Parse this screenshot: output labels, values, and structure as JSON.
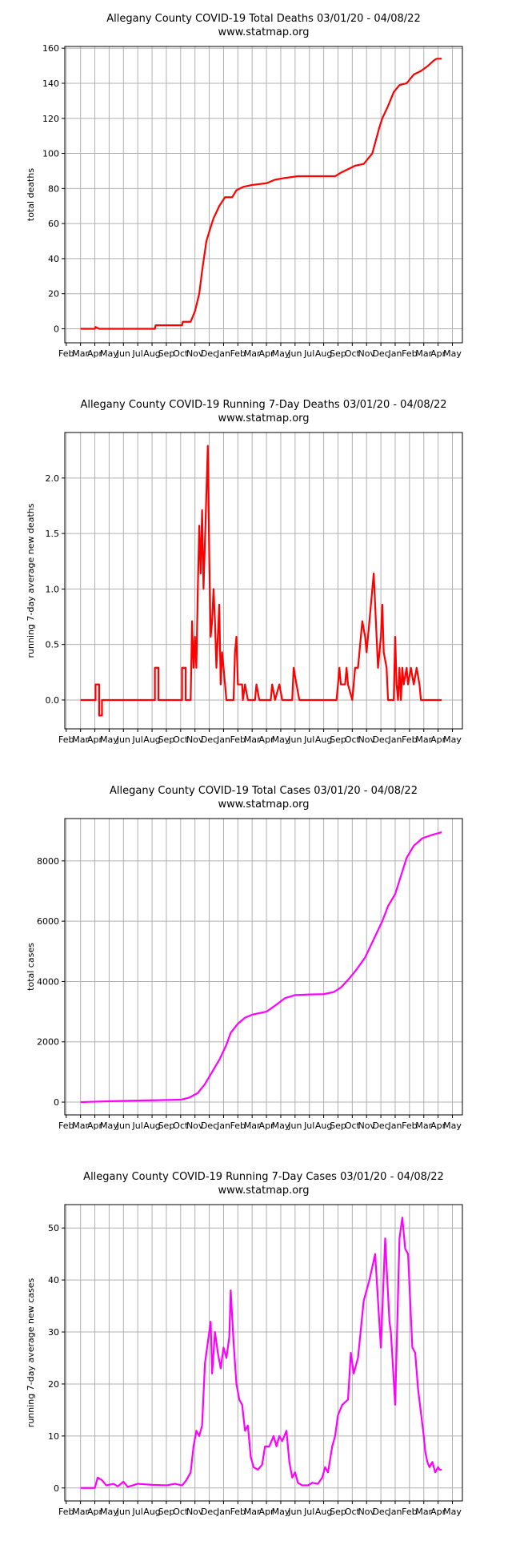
{
  "chart_data": [
    {
      "type": "line",
      "title": "Allegany County COVID-19 Total Deaths 03/01/20 - 04/08/22",
      "subtitle": "www.statmap.org",
      "ylabel": "total deaths",
      "color": "#ff0000",
      "grid": true,
      "xlim": [
        -0.1,
        27.7
      ],
      "ylim": [
        -8,
        161
      ],
      "yticks": [
        0,
        20,
        40,
        60,
        80,
        100,
        120,
        140,
        160
      ],
      "xticks": [
        {
          "value": 0,
          "label": "Feb"
        },
        {
          "value": 1,
          "label": "Mar"
        },
        {
          "value": 2,
          "label": "Apr"
        },
        {
          "value": 3,
          "label": "May"
        },
        {
          "value": 4,
          "label": "Jun"
        },
        {
          "value": 5,
          "label": "Jul"
        },
        {
          "value": 6,
          "label": "Aug"
        },
        {
          "value": 7,
          "label": "Sep"
        },
        {
          "value": 8,
          "label": "Oct"
        },
        {
          "value": 9,
          "label": "Nov"
        },
        {
          "value": 10,
          "label": "Dec"
        },
        {
          "value": 11,
          "label": "Jan"
        },
        {
          "value": 12,
          "label": "Feb"
        },
        {
          "value": 13,
          "label": "Mar"
        },
        {
          "value": 14,
          "label": "Apr"
        },
        {
          "value": 15,
          "label": "May"
        },
        {
          "value": 16,
          "label": "Jun"
        },
        {
          "value": 17,
          "label": "Jul"
        },
        {
          "value": 18,
          "label": "Aug"
        },
        {
          "value": 19,
          "label": "Sep"
        },
        {
          "value": 20,
          "label": "Oct"
        },
        {
          "value": 21,
          "label": "Nov"
        },
        {
          "value": 22,
          "label": "Dec"
        },
        {
          "value": 23,
          "label": "Jan"
        },
        {
          "value": 24,
          "label": "Feb"
        },
        {
          "value": 25,
          "label": "Mar"
        },
        {
          "value": 26,
          "label": "Apr"
        },
        {
          "value": 27,
          "label": "May"
        }
      ],
      "x": [
        1,
        2.0,
        2.05,
        2.3,
        6.2,
        6.25,
        8.1,
        8.15,
        8.7,
        9.0,
        9.3,
        9.5,
        9.8,
        10.1,
        10.3,
        10.7,
        11.1,
        11.6,
        11.9,
        12.4,
        13,
        14,
        14.6,
        15.3,
        16.2,
        17.5,
        18.8,
        19.2,
        19.7,
        20.2,
        20.8,
        21.2,
        21.4,
        21.6,
        21.9,
        22.1,
        22.5,
        22.9,
        23.3,
        23.8,
        24.3,
        24.8,
        25.3,
        25.7,
        25.9,
        26.25
      ],
      "values": [
        0,
        0,
        1,
        0,
        0,
        2,
        2,
        4,
        4,
        10,
        20,
        33,
        50,
        58,
        63,
        70,
        75,
        75,
        79,
        81,
        82,
        83,
        85,
        86,
        87,
        87,
        87,
        89,
        91,
        93,
        94,
        98,
        100,
        106,
        115,
        120,
        127,
        135,
        139,
        140,
        145,
        147,
        150,
        153,
        154,
        154
      ]
    },
    {
      "type": "line",
      "title": "Allegany County COVID-19 Running 7-Day Deaths 03/01/20 - 04/08/22",
      "subtitle": "www.statmap.org",
      "ylabel": "running 7-day average new deaths",
      "color": "#ff0000",
      "grid": true,
      "xlim": [
        -0.1,
        27.7
      ],
      "ylim": [
        -0.26,
        2.41
      ],
      "yticks": [
        {
          "value": 0,
          "label": "0.0"
        },
        {
          "value": 0.5,
          "label": "0.5"
        },
        {
          "value": 1,
          "label": "1.0"
        },
        {
          "value": 1.5,
          "label": "1.5"
        },
        {
          "value": 2,
          "label": "2.0"
        }
      ],
      "xticks": [
        {
          "value": 0,
          "label": "Feb"
        },
        {
          "value": 1,
          "label": "Mar"
        },
        {
          "value": 2,
          "label": "Apr"
        },
        {
          "value": 3,
          "label": "May"
        },
        {
          "value": 4,
          "label": "Jun"
        },
        {
          "value": 5,
          "label": "Jul"
        },
        {
          "value": 6,
          "label": "Aug"
        },
        {
          "value": 7,
          "label": "Sep"
        },
        {
          "value": 8,
          "label": "Oct"
        },
        {
          "value": 9,
          "label": "Nov"
        },
        {
          "value": 10,
          "label": "Dec"
        },
        {
          "value": 11,
          "label": "Jan"
        },
        {
          "value": 12,
          "label": "Feb"
        },
        {
          "value": 13,
          "label": "Mar"
        },
        {
          "value": 14,
          "label": "Apr"
        },
        {
          "value": 15,
          "label": "May"
        },
        {
          "value": 16,
          "label": "Jun"
        },
        {
          "value": 17,
          "label": "Jul"
        },
        {
          "value": 18,
          "label": "Aug"
        },
        {
          "value": 19,
          "label": "Sep"
        },
        {
          "value": 20,
          "label": "Oct"
        },
        {
          "value": 21,
          "label": "Nov"
        },
        {
          "value": 22,
          "label": "Dec"
        },
        {
          "value": 23,
          "label": "Jan"
        },
        {
          "value": 24,
          "label": "Feb"
        },
        {
          "value": 25,
          "label": "Mar"
        },
        {
          "value": 26,
          "label": "Apr"
        },
        {
          "value": 27,
          "label": "May"
        }
      ],
      "x": [
        1,
        2.05,
        2.05,
        2.3,
        2.3,
        2.5,
        2.5,
        6.2,
        6.2,
        6.45,
        6.45,
        8.1,
        8.1,
        8.35,
        8.35,
        8.7,
        8.8,
        8.9,
        9.0,
        9.1,
        9.2,
        9.3,
        9.4,
        9.5,
        9.6,
        9.7,
        9.9,
        10.0,
        10.1,
        10.2,
        10.3,
        10.4,
        10.5,
        10.7,
        10.8,
        10.9,
        11.0,
        11.2,
        11.7,
        11.8,
        11.9,
        12.0,
        12.3,
        12.35,
        12.5,
        12.7,
        13.2,
        13.3,
        13.5,
        14.3,
        14.4,
        14.6,
        14.9,
        15.1,
        15.8,
        15.9,
        16.1,
        16.3,
        18.9,
        19.0,
        19.1,
        19.2,
        19.5,
        19.6,
        19.7,
        20.0,
        20.2,
        20.4,
        20.5,
        20.7,
        20.9,
        21.0,
        21.2,
        21.5,
        21.7,
        21.8,
        22.0,
        22.1,
        22.2,
        22.4,
        22.5,
        22.9,
        23.0,
        23.1,
        23.2,
        23.3,
        23.4,
        23.5,
        23.6,
        23.8,
        23.9,
        24.1,
        24.3,
        24.5,
        24.7,
        24.8,
        26.0,
        26.25
      ],
      "values": [
        0,
        0,
        0.14,
        0.14,
        -0.14,
        -0.14,
        0,
        0,
        0.29,
        0.29,
        0,
        0,
        0.29,
        0.29,
        0,
        0,
        0.71,
        0.29,
        0.57,
        0.29,
        1.0,
        1.57,
        1.14,
        1.71,
        1.0,
        1.43,
        2.29,
        1.29,
        0.57,
        0.71,
        1.0,
        0.71,
        0.29,
        0.86,
        0.14,
        0.43,
        0.29,
        0,
        0,
        0.43,
        0.57,
        0.14,
        0.14,
        0,
        0.14,
        0,
        0,
        0.14,
        0,
        0,
        0.14,
        0,
        0.14,
        0,
        0,
        0.29,
        0.14,
        0,
        0,
        0.14,
        0.29,
        0.14,
        0.14,
        0.29,
        0.14,
        0,
        0.29,
        0.29,
        0.43,
        0.71,
        0.57,
        0.43,
        0.71,
        1.14,
        0.57,
        0.29,
        0.57,
        0.86,
        0.43,
        0.29,
        0,
        0,
        0.57,
        0.14,
        0,
        0.29,
        0,
        0.29,
        0.14,
        0.29,
        0.14,
        0.29,
        0.14,
        0.29,
        0.14,
        0,
        0,
        0
      ]
    },
    {
      "type": "line",
      "title": "Allegany County COVID-19 Total Cases 03/01/20 - 04/08/22",
      "subtitle": "www.statmap.org",
      "ylabel": "total cases",
      "color": "#ff00ff",
      "grid": true,
      "xlim": [
        -0.1,
        27.7
      ],
      "ylim": [
        -424,
        9404
      ],
      "yticks": [
        0,
        2000,
        4000,
        6000,
        8000
      ],
      "xticks": [
        {
          "value": 0,
          "label": "Feb"
        },
        {
          "value": 1,
          "label": "Mar"
        },
        {
          "value": 2,
          "label": "Apr"
        },
        {
          "value": 3,
          "label": "May"
        },
        {
          "value": 4,
          "label": "Jun"
        },
        {
          "value": 5,
          "label": "Jul"
        },
        {
          "value": 6,
          "label": "Aug"
        },
        {
          "value": 7,
          "label": "Sep"
        },
        {
          "value": 8,
          "label": "Oct"
        },
        {
          "value": 9,
          "label": "Nov"
        },
        {
          "value": 10,
          "label": "Dec"
        },
        {
          "value": 11,
          "label": "Jan"
        },
        {
          "value": 12,
          "label": "Feb"
        },
        {
          "value": 13,
          "label": "Mar"
        },
        {
          "value": 14,
          "label": "Apr"
        },
        {
          "value": 15,
          "label": "May"
        },
        {
          "value": 16,
          "label": "Jun"
        },
        {
          "value": 17,
          "label": "Jul"
        },
        {
          "value": 18,
          "label": "Aug"
        },
        {
          "value": 19,
          "label": "Sep"
        },
        {
          "value": 20,
          "label": "Oct"
        },
        {
          "value": 21,
          "label": "Nov"
        },
        {
          "value": 22,
          "label": "Dec"
        },
        {
          "value": 23,
          "label": "Jan"
        },
        {
          "value": 24,
          "label": "Feb"
        },
        {
          "value": 25,
          "label": "Mar"
        },
        {
          "value": 26,
          "label": "Apr"
        },
        {
          "value": 27,
          "label": "May"
        }
      ],
      "x": [
        1,
        3,
        6,
        8,
        8.6,
        9.2,
        9.7,
        10.2,
        10.7,
        11.2,
        11.5,
        12,
        12.5,
        13,
        14,
        14.6,
        15.3,
        16,
        17,
        18,
        18.7,
        19.2,
        19.7,
        20.3,
        20.9,
        21.5,
        22.1,
        22.5,
        23.0,
        23.4,
        23.8,
        24.3,
        24.9,
        25.5,
        26.25
      ],
      "values": [
        0,
        30,
        60,
        80,
        150,
        300,
        600,
        1000,
        1400,
        1900,
        2300,
        2600,
        2800,
        2900,
        3000,
        3200,
        3450,
        3550,
        3570,
        3580,
        3650,
        3800,
        4050,
        4400,
        4800,
        5400,
        6000,
        6500,
        6900,
        7500,
        8100,
        8500,
        8750,
        8850,
        8950
      ]
    },
    {
      "type": "line",
      "title": "Allegany County COVID-19 Running 7-Day Cases 03/01/20 - 04/08/22",
      "subtitle": "www.statmap.org",
      "ylabel": "running 7-day average new cases",
      "color": "#ff00ff",
      "grid": true,
      "xlim": [
        -0.1,
        27.7
      ],
      "ylim": [
        -2.5,
        54.5
      ],
      "yticks": [
        0,
        10,
        20,
        30,
        40,
        50
      ],
      "xticks": [
        {
          "value": 0,
          "label": "Feb"
        },
        {
          "value": 1,
          "label": "Mar"
        },
        {
          "value": 2,
          "label": "Apr"
        },
        {
          "value": 3,
          "label": "May"
        },
        {
          "value": 4,
          "label": "Jun"
        },
        {
          "value": 5,
          "label": "Jul"
        },
        {
          "value": 6,
          "label": "Aug"
        },
        {
          "value": 7,
          "label": "Sep"
        },
        {
          "value": 8,
          "label": "Oct"
        },
        {
          "value": 9,
          "label": "Nov"
        },
        {
          "value": 10,
          "label": "Dec"
        },
        {
          "value": 11,
          "label": "Jan"
        },
        {
          "value": 12,
          "label": "Feb"
        },
        {
          "value": 13,
          "label": "Mar"
        },
        {
          "value": 14,
          "label": "Apr"
        },
        {
          "value": 15,
          "label": "May"
        },
        {
          "value": 16,
          "label": "Jun"
        },
        {
          "value": 17,
          "label": "Jul"
        },
        {
          "value": 18,
          "label": "Aug"
        },
        {
          "value": 19,
          "label": "Sep"
        },
        {
          "value": 20,
          "label": "Oct"
        },
        {
          "value": 21,
          "label": "Nov"
        },
        {
          "value": 22,
          "label": "Dec"
        },
        {
          "value": 23,
          "label": "Jan"
        },
        {
          "value": 24,
          "label": "Feb"
        },
        {
          "value": 25,
          "label": "Mar"
        },
        {
          "value": 26,
          "label": "Apr"
        },
        {
          "value": 27,
          "label": "May"
        }
      ],
      "x": [
        1,
        2,
        2.2,
        2.5,
        2.8,
        3.3,
        3.6,
        4,
        4.3,
        5,
        6,
        7,
        7.6,
        8.1,
        8.4,
        8.7,
        8.9,
        9.1,
        9.3,
        9.5,
        9.7,
        9.9,
        10.1,
        10.2,
        10.4,
        10.6,
        10.8,
        11,
        11.2,
        11.4,
        11.5,
        11.7,
        11.9,
        12.1,
        12.3,
        12.5,
        12.7,
        12.9,
        13.1,
        13.4,
        13.7,
        13.9,
        14.2,
        14.5,
        14.7,
        14.9,
        15.1,
        15.4,
        15.6,
        15.8,
        16.0,
        16.2,
        16.5,
        16.9,
        17.2,
        17.6,
        17.9,
        18.1,
        18.3,
        18.6,
        18.8,
        19.0,
        19.3,
        19.7,
        19.9,
        20.1,
        20.4,
        20.8,
        21.2,
        21.6,
        21.8,
        22.0,
        22.3,
        22.6,
        22.7,
        22.85,
        23.0,
        23.3,
        23.5,
        23.7,
        23.9,
        24.2,
        24.4,
        24.6,
        25.0,
        25.1,
        25.25,
        25.4,
        25.6,
        25.8,
        26.0,
        26.1,
        26.25
      ],
      "values": [
        0,
        0,
        2,
        1.5,
        0.5,
        0.8,
        0.3,
        1.2,
        0.2,
        0.8,
        0.6,
        0.5,
        0.8,
        0.5,
        1.5,
        3,
        8,
        11,
        10,
        12,
        24,
        28,
        32,
        22,
        30,
        26,
        23,
        27,
        25,
        29,
        38,
        28,
        20,
        17,
        16,
        11,
        12,
        6,
        4,
        3.5,
        4.5,
        8,
        8,
        10,
        8,
        10,
        9,
        11,
        5,
        2,
        3,
        1,
        0.5,
        0.5,
        1,
        0.8,
        2,
        4,
        3,
        8,
        10,
        14,
        16,
        17,
        26,
        22,
        25,
        36,
        40,
        45,
        36,
        27,
        48,
        32,
        30,
        23,
        16,
        48,
        52,
        46,
        45,
        27,
        26,
        19,
        10,
        7,
        5,
        4,
        5,
        3,
        4,
        3.5,
        3.5
      ]
    }
  ]
}
